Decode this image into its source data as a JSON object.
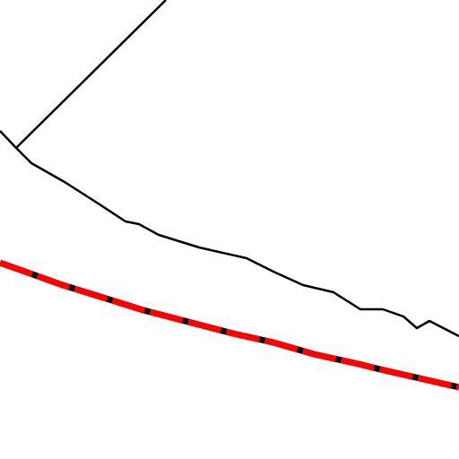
{
  "map": {
    "background_color": "#ffffff",
    "features": [
      {
        "id": "boundary-line",
        "kind": "boundary",
        "color": "#000000"
      },
      {
        "id": "railway",
        "kind": "railway",
        "color": "#ff0000",
        "tie_color": "#000000"
      },
      {
        "id": "road-diagonal",
        "kind": "road",
        "color": "#000000"
      }
    ]
  }
}
